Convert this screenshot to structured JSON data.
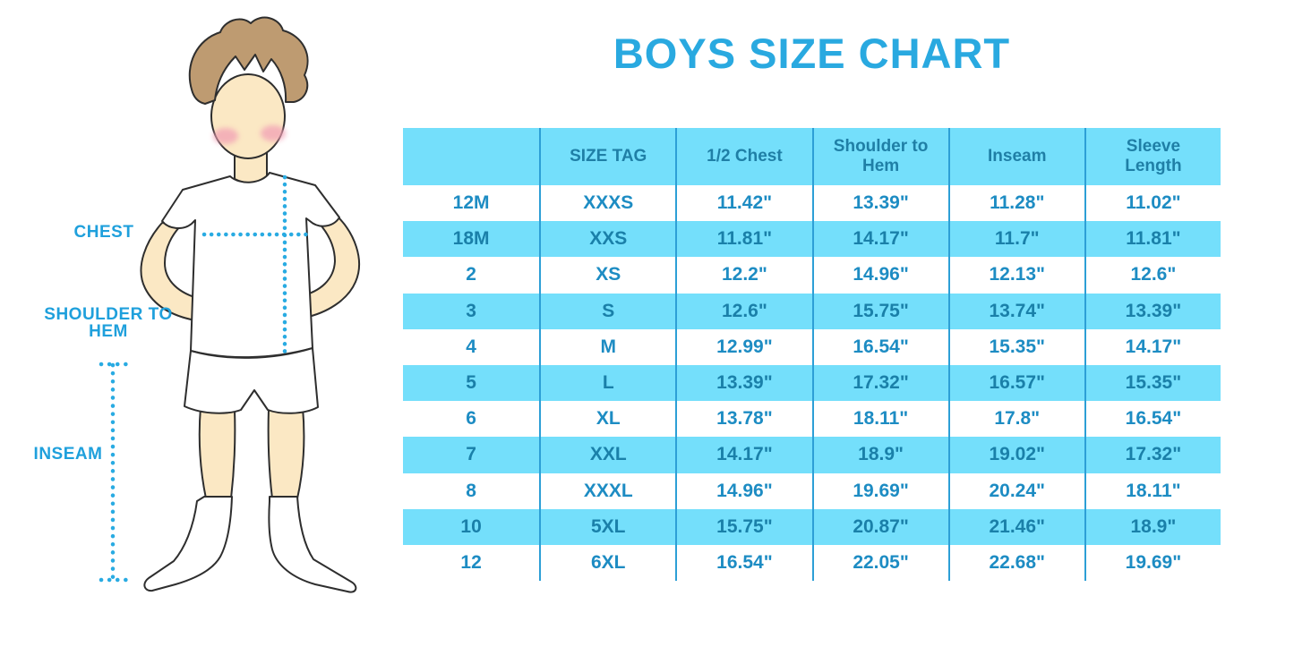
{
  "title": "BOYS SIZE CHART",
  "figure": {
    "labels": {
      "chest": "CHEST",
      "shoulder_to_hem": "SHOULDER TO HEM",
      "inseam": "INSEAM"
    }
  },
  "chart_data": {
    "type": "table",
    "title": "BOYS SIZE CHART",
    "columns": [
      "",
      "SIZE TAG",
      "1/2 Chest",
      "Shoulder to Hem",
      "Inseam",
      "Sleeve Length"
    ],
    "rows": [
      [
        "12M",
        "XXXS",
        "11.42\"",
        "13.39\"",
        "11.28\"",
        "11.02\""
      ],
      [
        "18M",
        "XXS",
        "11.81\"",
        "14.17\"",
        "11.7\"",
        "11.81\""
      ],
      [
        "2",
        "XS",
        "12.2\"",
        "14.96\"",
        "12.13\"",
        "12.6\""
      ],
      [
        "3",
        "S",
        "12.6\"",
        "15.75\"",
        "13.74\"",
        "13.39\""
      ],
      [
        "4",
        "M",
        "12.99\"",
        "16.54\"",
        "15.35\"",
        "14.17\""
      ],
      [
        "5",
        "L",
        "13.39\"",
        "17.32\"",
        "16.57\"",
        "15.35\""
      ],
      [
        "6",
        "XL",
        "13.78\"",
        "18.11\"",
        "17.8\"",
        "16.54\""
      ],
      [
        "7",
        "XXL",
        "14.17\"",
        "18.9\"",
        "19.02\"",
        "17.32\""
      ],
      [
        "8",
        "XXXL",
        "14.96\"",
        "19.69\"",
        "20.24\"",
        "18.11\""
      ],
      [
        "10",
        "5XL",
        "15.75\"",
        "20.87\"",
        "21.46\"",
        "18.9\""
      ],
      [
        "12",
        "6XL",
        "16.54\"",
        "22.05\"",
        "22.68\"",
        "19.69\""
      ]
    ],
    "layout": {
      "striping": "white and light-cyan alternating rows, header cyan",
      "column_dividers": true,
      "outer_border": false
    }
  },
  "colors": {
    "title_blue": "#29A9E0",
    "row_cyan_bg": "#74DFFB",
    "divider_blue": "#2D9FD6",
    "cell_text_blue": "#1D8CC3",
    "header_text_blue": "#1F7FA6",
    "label_blue": "#1FA0DC",
    "dotted_line_cyan": "#29ABE2",
    "skin": "#FBE8C4",
    "hair": "#BE9B71",
    "cheek_pink": "#F2A0B5"
  }
}
